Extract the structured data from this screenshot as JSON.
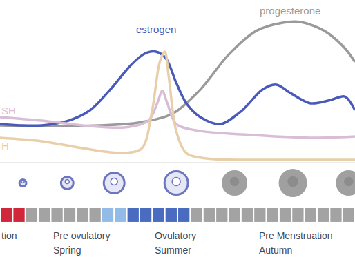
{
  "chart_data": {
    "type": "line",
    "xlim": [
      0,
      28
    ],
    "ylim": [
      0,
      100
    ],
    "tick_labels": false,
    "series": [
      {
        "name": "progesterone",
        "color": "#9a9a9a",
        "x": [
          0,
          5.4,
          10.9,
          13.6,
          15.8,
          18,
          20.2,
          22.3,
          23.7,
          25.6,
          27.2,
          28
        ],
        "values": [
          22.6,
          22.1,
          24.3,
          29.8,
          44.7,
          66,
          80.9,
          86,
          86.4,
          80.9,
          70.2,
          61.7
        ],
        "label": {
          "x": 22.9,
          "y": 93.6
        }
      },
      {
        "name": "estrogen",
        "color": "#4a5ab8",
        "x": [
          0,
          1.6,
          3.3,
          5.4,
          7.1,
          8.7,
          10.3,
          11.4,
          12.3,
          13.1,
          13.9,
          14.7,
          15.8,
          17.4,
          19.1,
          20.7,
          21.8,
          22.9,
          24.5,
          26.1,
          27.2,
          28
        ],
        "values": [
          23.4,
          22.6,
          22.6,
          25.5,
          31.9,
          44.7,
          59.6,
          66.8,
          68.1,
          63.8,
          48.9,
          36.2,
          27.7,
          23.4,
          31.9,
          44.7,
          47.7,
          42.6,
          36.2,
          38.3,
          40.4,
          31.9
        ],
        "label": {
          "x": 12.3,
          "y": 82
        }
      },
      {
        "name": "SH",
        "color": "#d9bdd6",
        "x": [
          0,
          3.3,
          6.5,
          9.8,
          11.7,
          12.4,
          12.8,
          13.2,
          13.9,
          15.8,
          19.1,
          24.5,
          28
        ],
        "values": [
          27.7,
          25.5,
          22.6,
          21.3,
          25.5,
          36.2,
          43.8,
          36.2,
          23.4,
          19.1,
          17,
          14.9,
          15.7
        ],
        "label": {
          "x": 0,
          "y": 31.9
        }
      },
      {
        "name": "H",
        "color": "#e9cfa9",
        "x": [
          0,
          3.3,
          6.5,
          9.8,
          11.2,
          12,
          12.6,
          13,
          13.3,
          13.9,
          14.7,
          16.3,
          21.8,
          28
        ],
        "values": [
          14.9,
          12.8,
          8.5,
          5.5,
          8.5,
          31.9,
          61.7,
          68.1,
          53.2,
          19.1,
          5.5,
          2.1,
          1.3,
          1.3
        ],
        "label": {
          "x": 0,
          "y": 9.8
        }
      }
    ],
    "phase_strip": {
      "colors": [
        "#d0283a",
        "#d0283a",
        "#a3a3a3",
        "#a3a3a3",
        "#a3a3a3",
        "#a3a3a3",
        "#a3a3a3",
        "#a3a3a3",
        "#93bbe8",
        "#93bbe8",
        "#4a6cc0",
        "#4a6cc0",
        "#4a6cc0",
        "#4a6cc0",
        "#4a6cc0",
        "#a3a3a3",
        "#a3a3a3",
        "#a3a3a3",
        "#a3a3a3",
        "#a3a3a3",
        "#a3a3a3",
        "#a3a3a3",
        "#a3a3a3",
        "#a3a3a3",
        "#a3a3a3",
        "#a3a3a3",
        "#a3a3a3",
        "#a3a3a3"
      ]
    },
    "phases": [
      {
        "text": "tion",
        "x": 0
      },
      {
        "text": "Pre ovulatory",
        "season": "Spring",
        "x": 4.1
      },
      {
        "text": "Ovulatory",
        "season": "Summer",
        "x": 12.1
      },
      {
        "text": "Pre Menstruation",
        "season": "Autumn",
        "x": 20.3
      }
    ]
  }
}
